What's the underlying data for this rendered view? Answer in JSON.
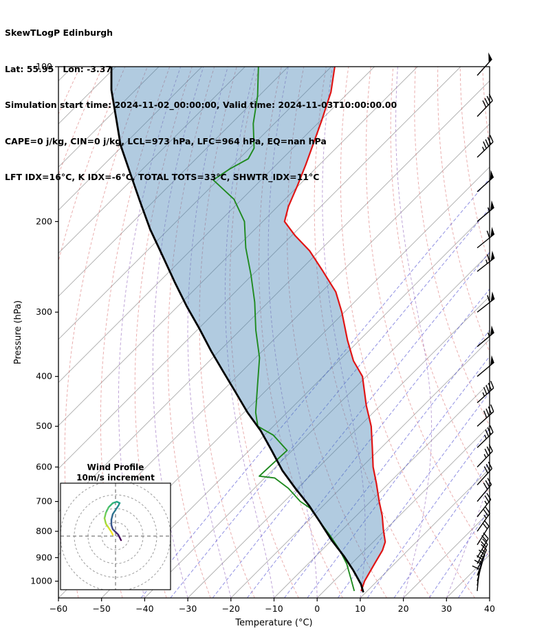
{
  "header": {
    "line1": "SkewTLogP Edinburgh",
    "line2": "Lat: 55.95   Lon: -3.37",
    "line3": "Simulation start time: 2024-11-02_00:00:00, Valid time: 2024-11-03T10:00:00.00",
    "line4": "CAPE=0 j/kg, CIN=0 j/kg, LCL=973 hPa, LFC=964 hPa, EQ=nan hPa",
    "line5": "LFT IDX=16°C, K IDX=-6°C, TOTAL TOTS=33°C, SHWTR_IDX=11°C"
  },
  "chart_data": {
    "type": "skewt-logp",
    "xlabel": "Temperature (°C)",
    "ylabel": "Pressure (hPa)",
    "x_ticks": [
      -60,
      -50,
      -40,
      -30,
      -20,
      -10,
      0,
      10,
      20,
      30,
      40
    ],
    "y_ticks": [
      100,
      200,
      300,
      400,
      500,
      600,
      700,
      800,
      900,
      1000
    ],
    "t_min": -60,
    "t_max": 40,
    "p_top": 100,
    "p_bottom": 1078,
    "skew_slope": 1.0,
    "colors": {
      "temperature": "#e01515",
      "dewpoint": "#1f8a1f",
      "parcel": "#000000",
      "shade": "#4682b4",
      "isotherm": "#ababab",
      "dry_adiabat": "#d96b6b",
      "moist_adiabat": "#9467bd",
      "mixing_ratio": "#4646cf",
      "barb": "#000000"
    },
    "isotherms": {
      "min": -180,
      "max": 40,
      "step": 10
    },
    "dry_adiabats": {
      "min": -100,
      "max": 200,
      "step": 10
    },
    "moist_adiabats": {
      "start_temps": [
        -40,
        -30,
        -20,
        -10,
        0,
        10,
        20,
        30
      ]
    },
    "mixing_ratio_g_kg": [
      0.1,
      0.2,
      0.5,
      1,
      2,
      3,
      5,
      8,
      12,
      20,
      30
    ],
    "temperature_profile": [
      [
        1045,
        8.6
      ],
      [
        1000,
        7.1
      ],
      [
        926,
        5.4
      ],
      [
        871,
        4.1
      ],
      [
        839,
        2.8
      ],
      [
        794,
        -0.5
      ],
      [
        746,
        -4.0
      ],
      [
        700,
        -8.0
      ],
      [
        646,
        -12.8
      ],
      [
        600,
        -17.4
      ],
      [
        549,
        -22.2
      ],
      [
        500,
        -27.3
      ],
      [
        456,
        -33.2
      ],
      [
        400,
        -40.9
      ],
      [
        373,
        -46.6
      ],
      [
        340,
        -52.8
      ],
      [
        300,
        -60.6
      ],
      [
        274,
        -66.7
      ],
      [
        250,
        -74.4
      ],
      [
        228,
        -82.3
      ],
      [
        213,
        -89.2
      ],
      [
        200,
        -94.9
      ],
      [
        187,
        -97.5
      ],
      [
        170,
        -100.3
      ],
      [
        155,
        -103.2
      ],
      [
        142,
        -106.1
      ],
      [
        127,
        -109.8
      ],
      [
        112,
        -114.2
      ],
      [
        100,
        -119.2
      ]
    ],
    "dewpoint_profile": [
      [
        1045,
        7.0
      ],
      [
        1000,
        4.1
      ],
      [
        926,
        -1.0
      ],
      [
        871,
        -5.8
      ],
      [
        816,
        -11.4
      ],
      [
        768,
        -16.9
      ],
      [
        721,
        -22.5
      ],
      [
        700,
        -26.3
      ],
      [
        660,
        -32.1
      ],
      [
        630,
        -37.7
      ],
      [
        625,
        -41.7
      ],
      [
        557,
        -41.2
      ],
      [
        520,
        -48.0
      ],
      [
        500,
        -53.6
      ],
      [
        470,
        -57.3
      ],
      [
        416,
        -63.2
      ],
      [
        368,
        -69.1
      ],
      [
        325,
        -76.4
      ],
      [
        287,
        -83.1
      ],
      [
        254,
        -90.3
      ],
      [
        225,
        -97.8
      ],
      [
        200,
        -104.2
      ],
      [
        181,
        -111.8
      ],
      [
        166,
        -121.1
      ],
      [
        158,
        -119.8
      ],
      [
        151,
        -117.9
      ],
      [
        144,
        -119.0
      ],
      [
        129,
        -124.9
      ],
      [
        114,
        -130.3
      ],
      [
        100,
        -136.9
      ]
    ],
    "parcel_profile": [
      [
        1051,
        9.4
      ],
      [
        1014,
        7.0
      ],
      [
        953,
        2.0
      ],
      [
        895,
        -3.4
      ],
      [
        832,
        -10.1
      ],
      [
        768,
        -16.9
      ],
      [
        713,
        -23.3
      ],
      [
        660,
        -30.5
      ],
      [
        609,
        -37.7
      ],
      [
        557,
        -44.8
      ],
      [
        510,
        -51.9
      ],
      [
        470,
        -59.2
      ],
      [
        428,
        -66.9
      ],
      [
        391,
        -74.4
      ],
      [
        357,
        -81.9
      ],
      [
        323,
        -89.8
      ],
      [
        292,
        -98.0
      ],
      [
        262,
        -106.4
      ],
      [
        233,
        -115.3
      ],
      [
        207,
        -124.3
      ],
      [
        182,
        -133.4
      ],
      [
        160,
        -142.4
      ],
      [
        142,
        -150.7
      ],
      [
        125,
        -158.4
      ],
      [
        111,
        -165.6
      ],
      [
        100,
        -171.0
      ]
    ],
    "wind_barbs": [
      {
        "p": 1045,
        "speed_kt": 10,
        "dir_deg": 185
      },
      {
        "p": 1020,
        "speed_kt": 12,
        "dir_deg": 190
      },
      {
        "p": 1000,
        "speed_kt": 15,
        "dir_deg": 195
      },
      {
        "p": 975,
        "speed_kt": 15,
        "dir_deg": 200
      },
      {
        "p": 950,
        "speed_kt": 18,
        "dir_deg": 205
      },
      {
        "p": 925,
        "speed_kt": 20,
        "dir_deg": 208
      },
      {
        "p": 900,
        "speed_kt": 20,
        "dir_deg": 210
      },
      {
        "p": 850,
        "speed_kt": 22,
        "dir_deg": 212
      },
      {
        "p": 800,
        "speed_kt": 25,
        "dir_deg": 215
      },
      {
        "p": 750,
        "speed_kt": 28,
        "dir_deg": 218
      },
      {
        "p": 700,
        "speed_kt": 30,
        "dir_deg": 220
      },
      {
        "p": 650,
        "speed_kt": 32,
        "dir_deg": 222
      },
      {
        "p": 600,
        "speed_kt": 35,
        "dir_deg": 224
      },
      {
        "p": 550,
        "speed_kt": 38,
        "dir_deg": 226
      },
      {
        "p": 500,
        "speed_kt": 42,
        "dir_deg": 228
      },
      {
        "p": 450,
        "speed_kt": 45,
        "dir_deg": 228
      },
      {
        "p": 400,
        "speed_kt": 50,
        "dir_deg": 230
      },
      {
        "p": 350,
        "speed_kt": 55,
        "dir_deg": 230
      },
      {
        "p": 300,
        "speed_kt": 60,
        "dir_deg": 232
      },
      {
        "p": 250,
        "speed_kt": 65,
        "dir_deg": 232
      },
      {
        "p": 225,
        "speed_kt": 60,
        "dir_deg": 231
      },
      {
        "p": 200,
        "speed_kt": 55,
        "dir_deg": 230
      },
      {
        "p": 175,
        "speed_kt": 50,
        "dir_deg": 228
      },
      {
        "p": 150,
        "speed_kt": 45,
        "dir_deg": 226
      },
      {
        "p": 125,
        "speed_kt": 42,
        "dir_deg": 224
      },
      {
        "p": 104,
        "speed_kt": 50,
        "dir_deg": 222
      }
    ],
    "hodograph": {
      "title": "Wind Profile",
      "subtitle": "10m/s increment",
      "ring_step_ms": 10,
      "trace_uv_ms": [
        [
          4,
          -3
        ],
        [
          3,
          -1
        ],
        [
          2,
          1
        ],
        [
          0,
          3
        ],
        [
          -2,
          5
        ],
        [
          -3,
          8
        ],
        [
          -3,
          12
        ],
        [
          -2,
          16
        ],
        [
          0,
          19
        ],
        [
          2,
          22
        ],
        [
          3,
          24
        ],
        [
          1,
          25
        ],
        [
          -2,
          24
        ],
        [
          -5,
          21
        ],
        [
          -7,
          17
        ],
        [
          -8,
          13
        ],
        [
          -7,
          9
        ],
        [
          -5,
          6
        ],
        [
          -3,
          3
        ],
        [
          -2,
          1
        ]
      ],
      "palette": [
        "#440154",
        "#472d7b",
        "#3b528b",
        "#2c728e",
        "#21918c",
        "#28ae80",
        "#5ec962",
        "#addc30",
        "#fde725"
      ]
    }
  }
}
